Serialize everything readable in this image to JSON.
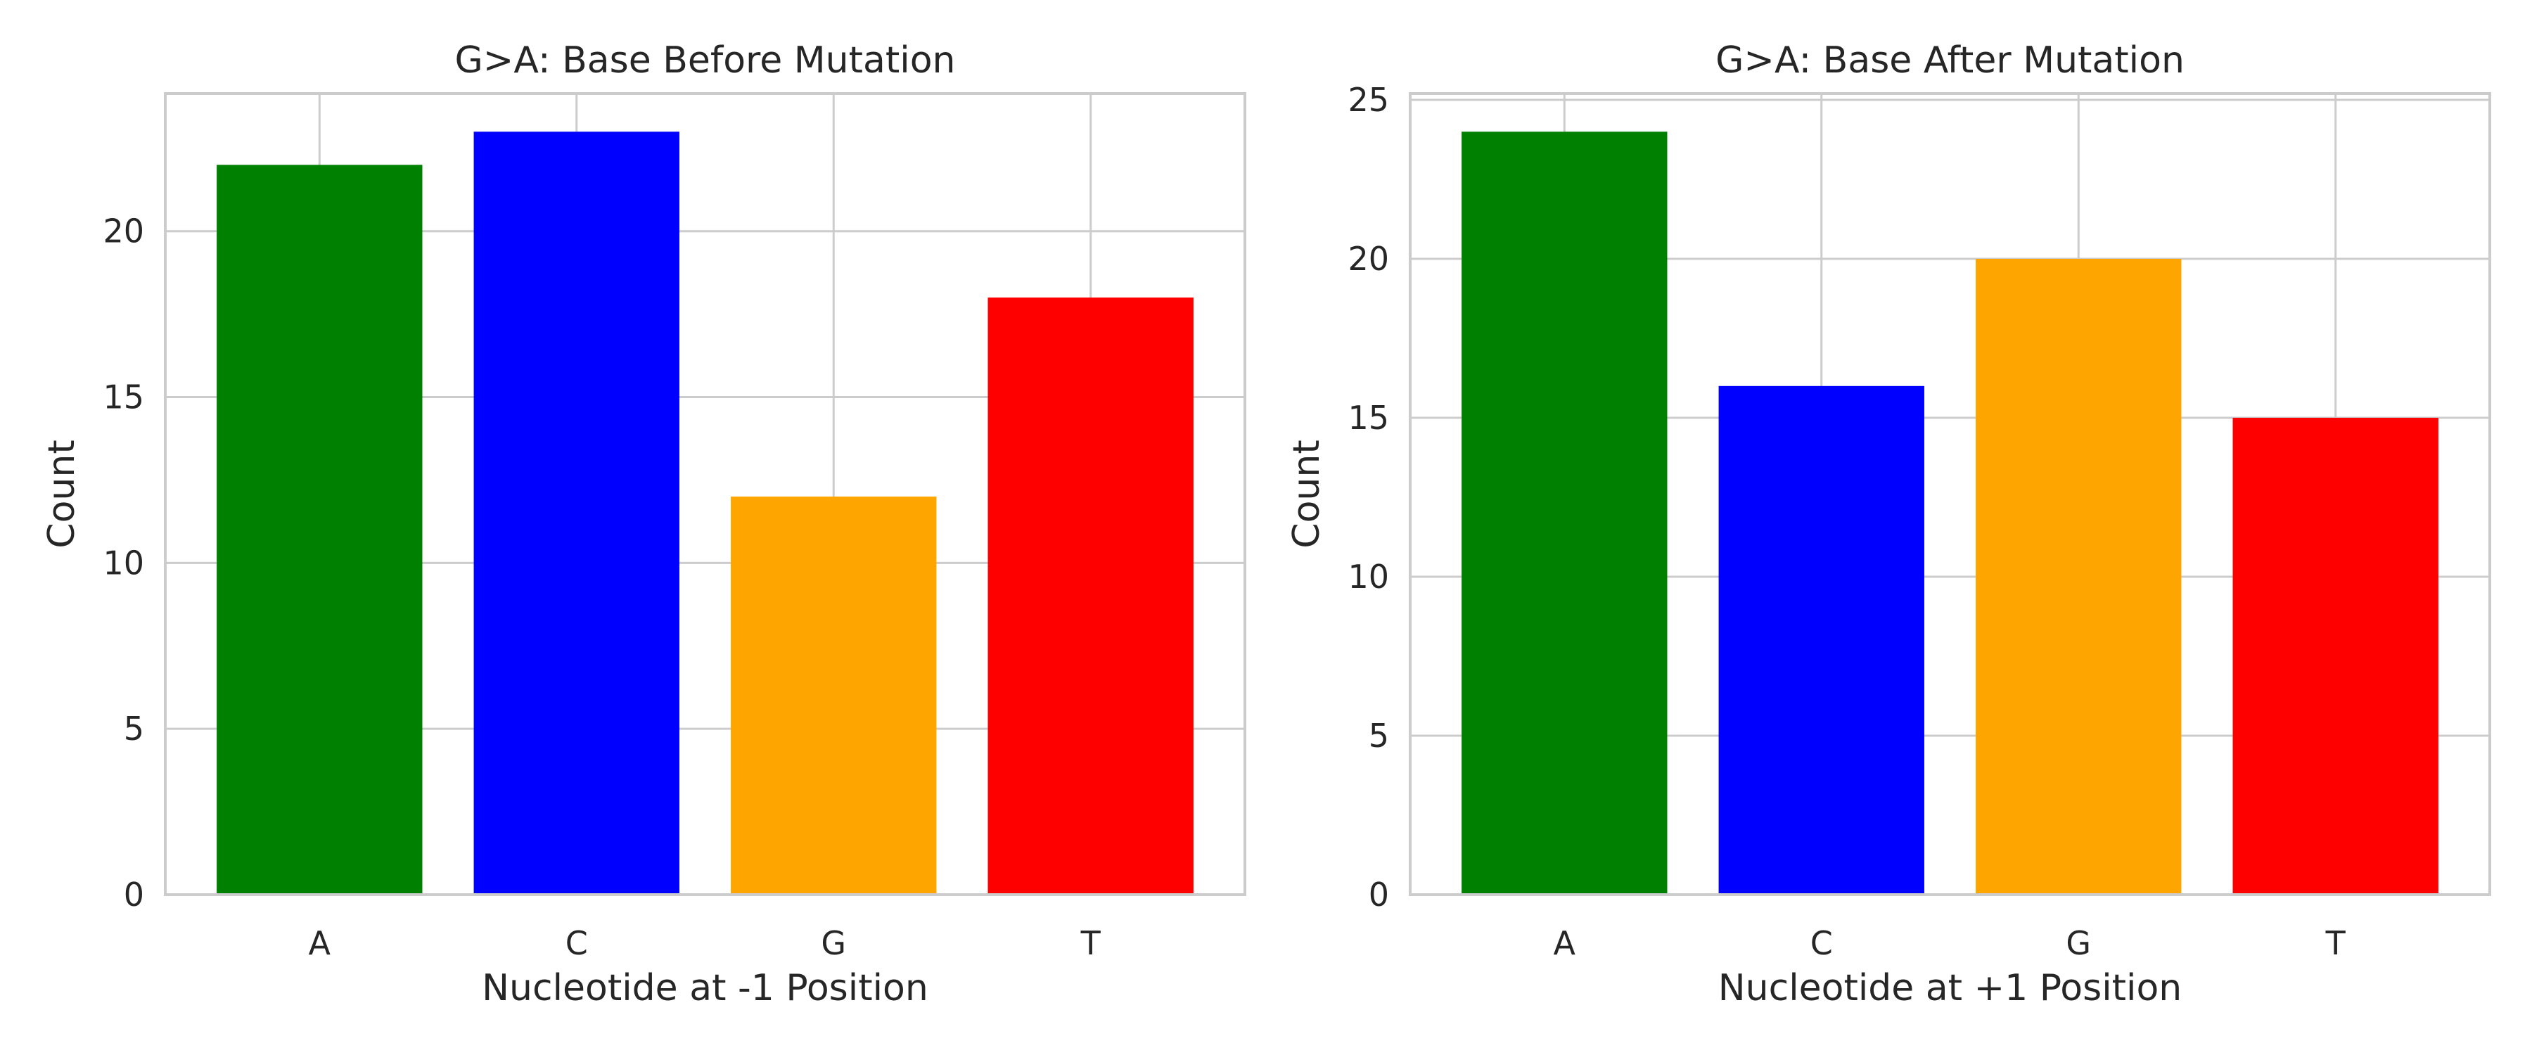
{
  "chart_data": [
    {
      "type": "bar",
      "title": "G>A: Base Before Mutation",
      "xlabel": "Nucleotide at -1 Position",
      "ylabel": "Count",
      "categories": [
        "A",
        "C",
        "G",
        "T"
      ],
      "values": [
        22,
        23,
        12,
        18
      ],
      "colors": [
        "#008000",
        "#0000ff",
        "#ffa500",
        "#ff0000"
      ],
      "ylim": [
        0,
        24.15
      ],
      "yticks": [
        0,
        5,
        10,
        15,
        20
      ],
      "grid": true,
      "legend": "none"
    },
    {
      "type": "bar",
      "title": "G>A: Base After Mutation",
      "xlabel": "Nucleotide at +1 Position",
      "ylabel": "Count",
      "categories": [
        "A",
        "C",
        "G",
        "T"
      ],
      "values": [
        24,
        16,
        20,
        15
      ],
      "colors": [
        "#008000",
        "#0000ff",
        "#ffa500",
        "#ff0000"
      ],
      "ylim": [
        0,
        25.2
      ],
      "yticks": [
        0,
        5,
        10,
        15,
        20,
        25
      ],
      "grid": true,
      "legend": "none"
    }
  ]
}
